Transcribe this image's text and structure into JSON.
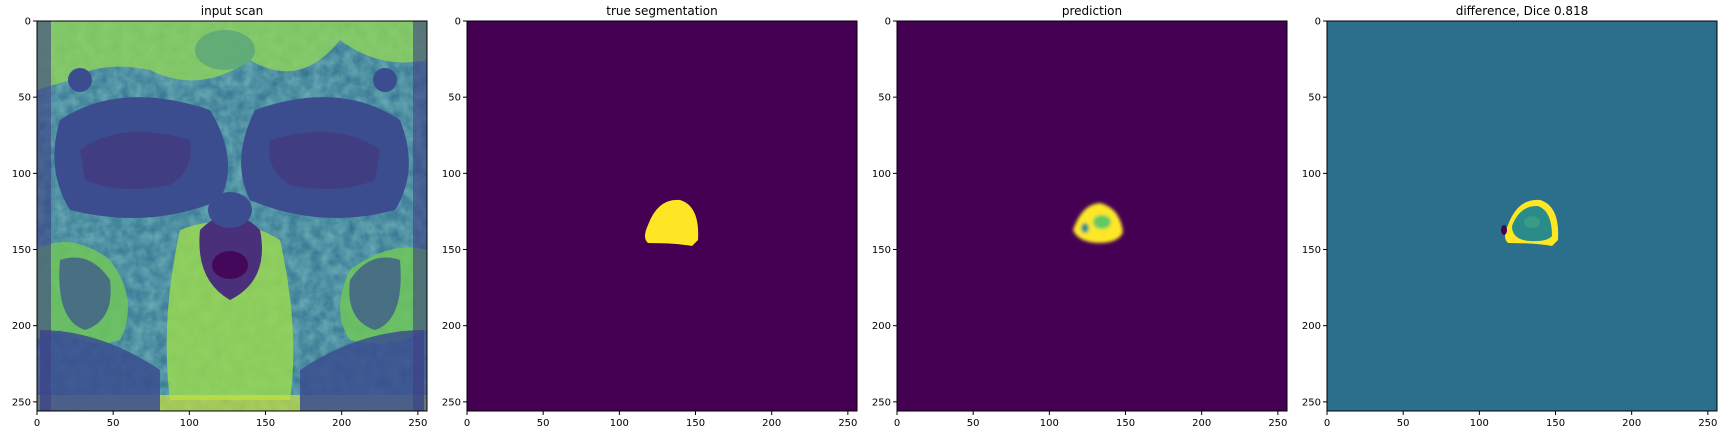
{
  "figure": {
    "panels": [
      {
        "id": "input",
        "title": "input scan",
        "image_kind": "mri-scan"
      },
      {
        "id": "truth",
        "title": "true segmentation",
        "image_kind": "mask-solid"
      },
      {
        "id": "pred",
        "title": "prediction",
        "image_kind": "mask-noisy"
      },
      {
        "id": "diff",
        "title": "difference, Dice 0.818",
        "image_kind": "difference-map"
      }
    ],
    "x_ticks": [
      "0",
      "50",
      "100",
      "150",
      "200",
      "250"
    ],
    "y_ticks": [
      "0",
      "50",
      "100",
      "150",
      "200",
      "250"
    ],
    "colors": {
      "viridis_dark": "#440154",
      "viridis_blue": "#3b528b",
      "viridis_teal": "#21918c",
      "viridis_green": "#5ec962",
      "viridis_yellow": "#fde725",
      "diff_background": "#2b6f8c"
    }
  }
}
